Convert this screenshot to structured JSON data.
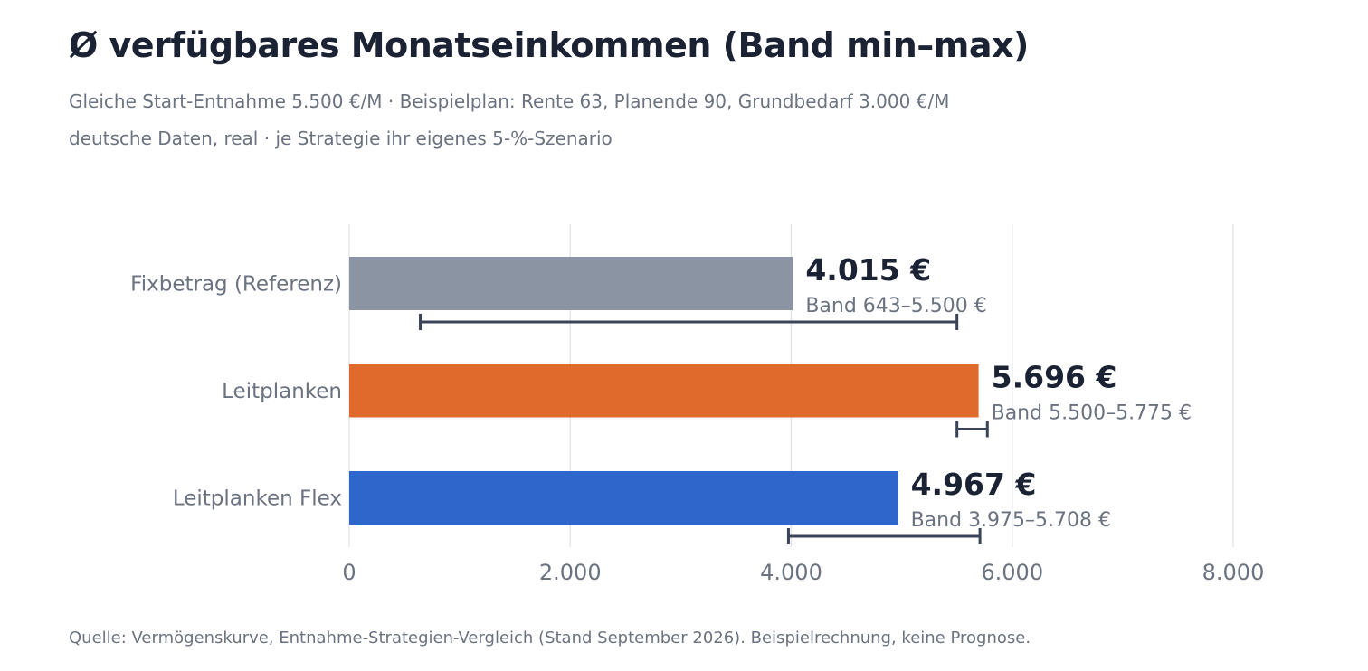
{
  "header": {
    "title": "Ø verfügbares Monatseinkommen (Band min–max)",
    "subtitle_line1": "Gleiche Start-Entnahme 5.500 €/M · Beispielplan: Rente 63, Planende 90, Grundbedarf 3.000 €/M",
    "subtitle_line2": "deutsche Daten, real · je Strategie ihr eigenes 5-%-Szenario"
  },
  "footer": {
    "source": "Quelle: Vermögenskurve, Entnahme-Strategien-Vergleich (Stand September 2026). Beispielrechnung, keine Prognose."
  },
  "chart_data": {
    "type": "bar",
    "orientation": "horizontal",
    "categories": [
      "Fixbetrag (Referenz)",
      "Leitplanken",
      "Leitplanken Flex"
    ],
    "values": [
      4015,
      5696,
      4967
    ],
    "value_labels": [
      "4.015 €",
      "5.696 €",
      "4.967 €"
    ],
    "bands": [
      [
        643,
        5500
      ],
      [
        5500,
        5775
      ],
      [
        3975,
        5708
      ]
    ],
    "band_labels": [
      "Band 643–5.500 €",
      "Band 5.500–5.775 €",
      "Band 3.975–5.708 €"
    ],
    "colors": [
      "#8b94a3",
      "#e06a2c",
      "#2f66cb"
    ],
    "xlim": [
      0,
      8000
    ],
    "xticks": [
      0,
      2000,
      4000,
      6000,
      8000
    ],
    "xtick_labels": [
      "0",
      "2.000",
      "4.000",
      "6.000",
      "8.000"
    ],
    "grid": true,
    "legend": "none"
  }
}
